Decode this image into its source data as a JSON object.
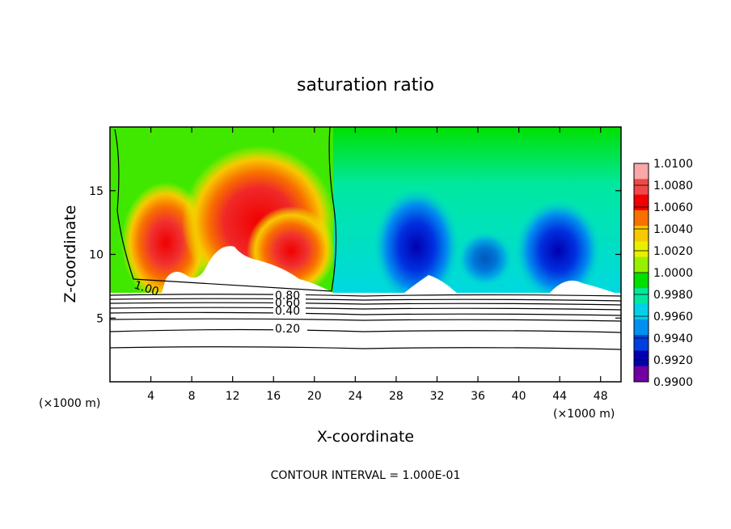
{
  "chart_data": {
    "type": "heatmap",
    "title": "saturation ratio",
    "xlabel": "X-coordinate",
    "ylabel": "Z-coordinate",
    "x_unit": "(×1000 m)",
    "footer": "CONTOUR INTERVAL = 1.000E-01",
    "xlim": [
      0,
      50
    ],
    "ylim": [
      0,
      20
    ],
    "x_ticks": [
      4,
      8,
      12,
      16,
      20,
      24,
      28,
      32,
      36,
      40,
      44,
      48
    ],
    "y_ticks": [
      5,
      10,
      15
    ],
    "colorbar": {
      "levels": [
        "1.0100",
        "1.0080",
        "1.0060",
        "1.0040",
        "1.0020",
        "1.0000",
        "0.9980",
        "0.9960",
        "0.9940",
        "0.9920",
        "0.9900"
      ],
      "colors": [
        "#f8a8a8",
        "#f04848",
        "#f00000",
        "#f87000",
        "#f8c800",
        "#e8f000",
        "#98f000",
        "#00e000",
        "#00e8a0",
        "#00d0e8",
        "#0090f0",
        "#0040e0",
        "#0000b0",
        "#7000a0"
      ]
    },
    "contour_labels": [
      {
        "text": "1.00",
        "x": 3.6,
        "z": 7.7
      },
      {
        "text": "0.80",
        "x": 17.8,
        "z": 6.9
      },
      {
        "text": "0.60",
        "x": 17.8,
        "z": 6.3
      },
      {
        "text": "0.40",
        "x": 17.8,
        "z": 5.4
      },
      {
        "text": "0.20",
        "x": 17.8,
        "z": 4.2
      }
    ],
    "contour_levels": [
      0.2,
      0.4,
      0.6,
      0.8,
      1.0
    ]
  }
}
